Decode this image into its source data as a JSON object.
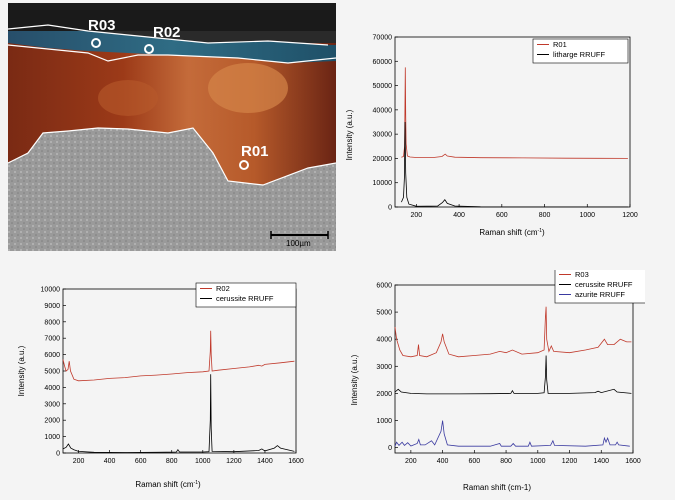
{
  "micrograph": {
    "labels": [
      "R03",
      "R02",
      "R01"
    ],
    "scalebar": "100µm"
  },
  "chart_data": [
    {
      "type": "line",
      "ylabel": "Intensity (a.u.)",
      "xlabel_main": "Raman shift (cm",
      "xlabel_sup": "-1",
      "xlabel_tail": ")",
      "xlim": [
        100,
        1200
      ],
      "ylim": [
        0,
        70000
      ],
      "xticks": [
        200,
        400,
        600,
        800,
        1000,
        1200
      ],
      "yticks": [
        0,
        10000,
        20000,
        30000,
        40000,
        50000,
        60000,
        70000
      ],
      "legend_position": "top-right",
      "series": [
        {
          "name": "R01",
          "color": "#c0392b",
          "points": [
            [
              130,
              20500
            ],
            [
              140,
              20800
            ],
            [
              145,
              25000
            ],
            [
              148,
              57500
            ],
            [
              150,
              38000
            ],
            [
              152,
              26000
            ],
            [
              158,
              21000
            ],
            [
              170,
              20600
            ],
            [
              200,
              20400
            ],
            [
              280,
              20400
            ],
            [
              320,
              20800
            ],
            [
              335,
              21800
            ],
            [
              345,
              21000
            ],
            [
              380,
              20500
            ],
            [
              500,
              20300
            ],
            [
              700,
              20200
            ],
            [
              900,
              20100
            ],
            [
              1050,
              20050
            ],
            [
              1190,
              20000
            ]
          ]
        },
        {
          "name": "litharge RRUFF",
          "color": "#000000",
          "points": [
            [
              130,
              2000
            ],
            [
              140,
              4000
            ],
            [
              144,
              12000
            ],
            [
              147,
              35000
            ],
            [
              150,
              14000
            ],
            [
              155,
              4000
            ],
            [
              165,
              1200
            ],
            [
              200,
              300
            ],
            [
              300,
              400
            ],
            [
              322,
              1800
            ],
            [
              333,
              3000
            ],
            [
              345,
              1500
            ],
            [
              380,
              400
            ],
            [
              500,
              100
            ],
            [
              700,
              50
            ],
            [
              900,
              50
            ],
            [
              1050,
              50
            ],
            [
              1190,
              50
            ]
          ]
        }
      ]
    },
    {
      "type": "line",
      "ylabel": "Intensity (a.u.)",
      "xlabel_main": "Raman shift (cm",
      "xlabel_sup": "-1",
      "xlabel_tail": ")",
      "xlim": [
        100,
        1600
      ],
      "ylim": [
        0,
        10000
      ],
      "xticks": [
        200,
        400,
        600,
        800,
        1000,
        1200,
        1400,
        1600
      ],
      "yticks": [
        0,
        1000,
        2000,
        3000,
        4000,
        5000,
        6000,
        7000,
        8000,
        9000,
        10000
      ],
      "legend_position": "top-right",
      "series": [
        {
          "name": "R02",
          "color": "#c0392b",
          "points": [
            [
              100,
              5700
            ],
            [
              110,
              5300
            ],
            [
              120,
              5000
            ],
            [
              132,
              5100
            ],
            [
              140,
              5600
            ],
            [
              148,
              5000
            ],
            [
              170,
              4500
            ],
            [
              200,
              4400
            ],
            [
              300,
              4450
            ],
            [
              400,
              4550
            ],
            [
              500,
              4600
            ],
            [
              600,
              4700
            ],
            [
              700,
              4750
            ],
            [
              800,
              4820
            ],
            [
              900,
              4900
            ],
            [
              1000,
              4950
            ],
            [
              1040,
              5000
            ],
            [
              1048,
              6200
            ],
            [
              1051,
              7450
            ],
            [
              1054,
              6000
            ],
            [
              1060,
              5000
            ],
            [
              1100,
              5050
            ],
            [
              1200,
              5150
            ],
            [
              1300,
              5250
            ],
            [
              1360,
              5350
            ],
            [
              1380,
              5300
            ],
            [
              1400,
              5400
            ],
            [
              1500,
              5500
            ],
            [
              1590,
              5600
            ]
          ]
        },
        {
          "name": "cerussite RRUFF",
          "color": "#000000",
          "points": [
            [
              100,
              250
            ],
            [
              120,
              350
            ],
            [
              135,
              550
            ],
            [
              150,
              300
            ],
            [
              170,
              200
            ],
            [
              200,
              100
            ],
            [
              300,
              40
            ],
            [
              500,
              30
            ],
            [
              700,
              40
            ],
            [
              830,
              60
            ],
            [
              840,
              200
            ],
            [
              850,
              60
            ],
            [
              1000,
              60
            ],
            [
              1040,
              80
            ],
            [
              1048,
              2000
            ],
            [
              1051,
              4800
            ],
            [
              1054,
              1500
            ],
            [
              1060,
              100
            ],
            [
              1200,
              80
            ],
            [
              1360,
              150
            ],
            [
              1380,
              250
            ],
            [
              1400,
              130
            ],
            [
              1460,
              300
            ],
            [
              1480,
              450
            ],
            [
              1500,
              300
            ],
            [
              1590,
              100
            ]
          ]
        }
      ]
    },
    {
      "type": "line",
      "ylabel": "Intensity (a.u.)",
      "xlabel_main": "Raman shift (cm-1)",
      "xlim": [
        100,
        1600
      ],
      "ylim": [
        -200,
        6000
      ],
      "xticks": [
        200,
        400,
        600,
        800,
        1000,
        1200,
        1400,
        1600
      ],
      "yticks": [
        0,
        1000,
        2000,
        3000,
        4000,
        5000,
        6000
      ],
      "legend_position": "top-right",
      "series": [
        {
          "name": "R03",
          "color": "#c0392b",
          "points": [
            [
              100,
              4450
            ],
            [
              110,
              4000
            ],
            [
              130,
              3600
            ],
            [
              150,
              3400
            ],
            [
              200,
              3350
            ],
            [
              240,
              3400
            ],
            [
              248,
              3800
            ],
            [
              255,
              3400
            ],
            [
              300,
              3350
            ],
            [
              360,
              3500
            ],
            [
              390,
              3900
            ],
            [
              400,
              4200
            ],
            [
              410,
              3900
            ],
            [
              440,
              3450
            ],
            [
              500,
              3350
            ],
            [
              600,
              3400
            ],
            [
              700,
              3450
            ],
            [
              760,
              3550
            ],
            [
              800,
              3500
            ],
            [
              840,
              3600
            ],
            [
              900,
              3450
            ],
            [
              1000,
              3500
            ],
            [
              1040,
              3600
            ],
            [
              1048,
              4800
            ],
            [
              1052,
              5200
            ],
            [
              1056,
              4000
            ],
            [
              1070,
              3550
            ],
            [
              1085,
              3750
            ],
            [
              1100,
              3550
            ],
            [
              1200,
              3500
            ],
            [
              1300,
              3600
            ],
            [
              1380,
              3700
            ],
            [
              1420,
              4000
            ],
            [
              1440,
              3800
            ],
            [
              1480,
              3800
            ],
            [
              1520,
              4000
            ],
            [
              1560,
              3900
            ],
            [
              1590,
              3900
            ]
          ]
        },
        {
          "name": "cerussite RRUFF",
          "color": "#000000",
          "points": [
            [
              100,
              2050
            ],
            [
              120,
              2150
            ],
            [
              140,
              2050
            ],
            [
              200,
              2000
            ],
            [
              300,
              1980
            ],
            [
              500,
              1980
            ],
            [
              700,
              1990
            ],
            [
              830,
              2000
            ],
            [
              840,
              2100
            ],
            [
              850,
              2000
            ],
            [
              1000,
              2000
            ],
            [
              1040,
              2020
            ],
            [
              1048,
              2600
            ],
            [
              1052,
              3400
            ],
            [
              1056,
              2500
            ],
            [
              1065,
              2000
            ],
            [
              1200,
              2000
            ],
            [
              1360,
              2030
            ],
            [
              1380,
              2080
            ],
            [
              1400,
              2030
            ],
            [
              1480,
              2150
            ],
            [
              1500,
              2050
            ],
            [
              1590,
              2000
            ]
          ]
        },
        {
          "name": "azurite RRUFF",
          "color": "#3a3aa0",
          "points": [
            [
              100,
              50
            ],
            [
              110,
              200
            ],
            [
              125,
              80
            ],
            [
              145,
              200
            ],
            [
              160,
              80
            ],
            [
              180,
              180
            ],
            [
              200,
              60
            ],
            [
              240,
              150
            ],
            [
              250,
              300
            ],
            [
              260,
              100
            ],
            [
              290,
              100
            ],
            [
              330,
              250
            ],
            [
              350,
              100
            ],
            [
              390,
              600
            ],
            [
              400,
              1000
            ],
            [
              410,
              500
            ],
            [
              430,
              100
            ],
            [
              500,
              50
            ],
            [
              700,
              50
            ],
            [
              760,
              150
            ],
            [
              770,
              50
            ],
            [
              830,
              50
            ],
            [
              845,
              150
            ],
            [
              860,
              50
            ],
            [
              940,
              50
            ],
            [
              950,
              200
            ],
            [
              960,
              50
            ],
            [
              1080,
              80
            ],
            [
              1095,
              250
            ],
            [
              1105,
              80
            ],
            [
              1300,
              50
            ],
            [
              1410,
              100
            ],
            [
              1420,
              350
            ],
            [
              1430,
              200
            ],
            [
              1440,
              350
            ],
            [
              1455,
              100
            ],
            [
              1490,
              100
            ],
            [
              1500,
              200
            ],
            [
              1510,
              100
            ],
            [
              1580,
              50
            ]
          ]
        }
      ]
    }
  ]
}
